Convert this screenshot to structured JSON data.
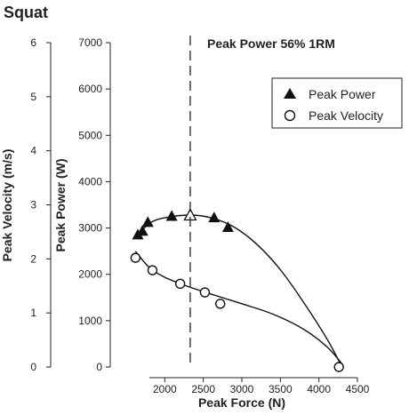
{
  "chart_data": {
    "type": "scatter",
    "title": "Squat",
    "annotation": "Peak Power 56% 1RM",
    "annotation_x": 2330,
    "xlabel": "Peak Force (N)",
    "ylabel_left": "Peak Velocity (m/s)",
    "ylabel_right": "Peak Power (W)",
    "xlim": [
      1500,
      4500
    ],
    "x_ticks": [
      2000,
      2500,
      3000,
      3500,
      4000,
      4500
    ],
    "velocity_lim": [
      0,
      6
    ],
    "velocity_ticks": [
      0,
      1,
      2,
      3,
      4,
      5,
      6
    ],
    "power_lim": [
      0,
      7000
    ],
    "power_ticks": [
      0,
      1000,
      2000,
      3000,
      4000,
      5000,
      6000,
      7000
    ],
    "legend_position": "top-right",
    "grid": false,
    "series": [
      {
        "name": "Peak Power",
        "marker": "triangle-filled",
        "axis": "power",
        "points": [
          [
            1650,
            2850
          ],
          [
            1710,
            2930
          ],
          [
            1780,
            3120
          ],
          [
            2090,
            3250
          ],
          [
            2640,
            3220
          ],
          [
            2820,
            3010
          ]
        ],
        "open_point": [
          2330,
          3270
        ],
        "curve": [
          [
            1620,
            2790
          ],
          [
            1800,
            3100
          ],
          [
            2000,
            3220
          ],
          [
            2330,
            3280
          ],
          [
            2600,
            3220
          ],
          [
            2900,
            3020
          ],
          [
            3200,
            2640
          ],
          [
            3500,
            2100
          ],
          [
            3800,
            1400
          ],
          [
            4100,
            620
          ],
          [
            4300,
            0
          ]
        ]
      },
      {
        "name": "Peak Velocity",
        "marker": "circle-open",
        "axis": "velocity",
        "points": [
          [
            1620,
            2.02
          ],
          [
            1840,
            1.79
          ],
          [
            2200,
            1.54
          ],
          [
            2520,
            1.38
          ],
          [
            2720,
            1.17
          ],
          [
            4260,
            0.0
          ]
        ],
        "curve": [
          [
            1620,
            2.14
          ],
          [
            1800,
            1.84
          ],
          [
            2000,
            1.66
          ],
          [
            2300,
            1.49
          ],
          [
            2600,
            1.35
          ],
          [
            3000,
            1.17
          ],
          [
            3400,
            0.98
          ],
          [
            3800,
            0.7
          ],
          [
            4100,
            0.38
          ],
          [
            4300,
            0.06
          ]
        ]
      }
    ]
  }
}
